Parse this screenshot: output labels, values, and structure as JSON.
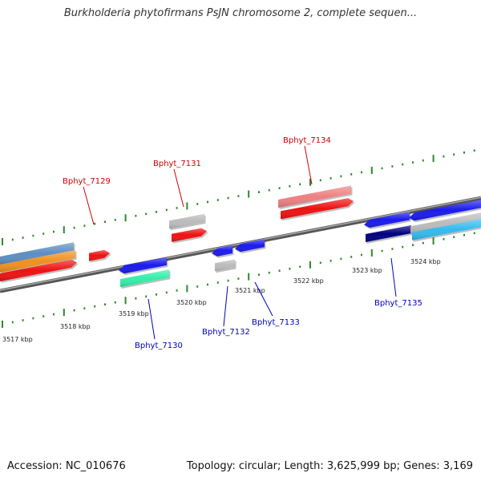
{
  "title": "Burkholderia phytofirmans PsJN chromosome 2, complete sequen...",
  "accession_text": "Accession: NC_010676",
  "topology_text": "Topology: circular; Length: 3,625,999 bp; Genes: 3,169",
  "colors": {
    "backbone": "#777777",
    "tick": "#2a8a2a",
    "label_forward": "#cc0000",
    "label_reverse": "#0000bb"
  },
  "kbp_labels": [
    "3517 kbp",
    "3518 kbp",
    "3519 kbp",
    "3520 kbp",
    "3521 kbp",
    "3522 kbp",
    "3523 kbp",
    "3524 kbp"
  ],
  "gene_labels": [
    {
      "text": "Bphyt_7129",
      "strand": "forward"
    },
    {
      "text": "Bphyt_7130",
      "strand": "reverse"
    },
    {
      "text": "Bphyt_7131",
      "strand": "forward"
    },
    {
      "text": "Bphyt_7132",
      "strand": "reverse"
    },
    {
      "text": "Bphyt_7133",
      "strand": "reverse"
    },
    {
      "text": "Bphyt_7134",
      "strand": "forward"
    },
    {
      "text": "Bphyt_7135",
      "strand": "reverse"
    }
  ],
  "features": [
    {
      "name": "forward-feature-left-steelblue",
      "color": "#5b8ec4"
    },
    {
      "name": "forward-feature-left-orange",
      "color": "#f0901e"
    },
    {
      "name": "forward-gene-left-red",
      "color": "#ee1111"
    },
    {
      "name": "forward-gene-7129",
      "color": "#ee1111"
    },
    {
      "name": "forward-feature-7131-gray",
      "color": "#bbbbbb"
    },
    {
      "name": "forward-gene-7131",
      "color": "#ee1111"
    },
    {
      "name": "forward-feature-7134-pink",
      "color": "#ee8080"
    },
    {
      "name": "forward-gene-7134",
      "color": "#ee1111"
    },
    {
      "name": "reverse-gene-7130",
      "color": "#1a1aee"
    },
    {
      "name": "reverse-feature-7130-aqua",
      "color": "#33eeaa"
    },
    {
      "name": "reverse-gene-7132",
      "color": "#1a1aee"
    },
    {
      "name": "reverse-feature-7132-gray",
      "color": "#bbbbbb"
    },
    {
      "name": "reverse-gene-7133",
      "color": "#1a1aee"
    },
    {
      "name": "reverse-gene-7135",
      "color": "#1a1aee"
    },
    {
      "name": "reverse-feature-7135-navy",
      "color": "#000080"
    },
    {
      "name": "reverse-gene-right-blue",
      "color": "#1a1aee"
    },
    {
      "name": "reverse-feature-right-gray",
      "color": "#bbbbbb"
    },
    {
      "name": "reverse-feature-right-skyblue",
      "color": "#33bbee"
    }
  ]
}
